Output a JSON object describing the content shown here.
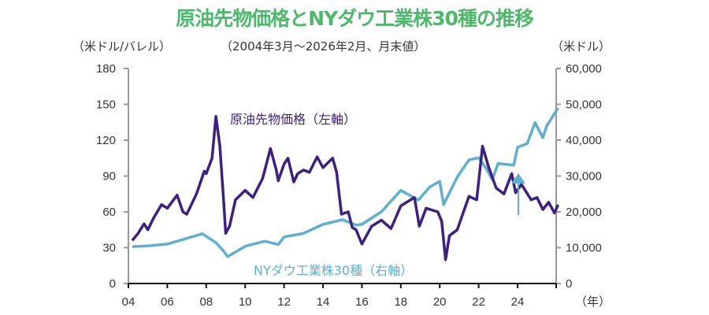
{
  "chart_data": {
    "type": "line",
    "title": "原油先物価格とNYダウ工業株30種の推移",
    "subtitle": "（2004年3月～2026年2月、月末値）",
    "ylabel_left": "（米ドル/バレル）",
    "ylabel_right": "（米ドル）",
    "xlabel": "（年）",
    "x_ticks": [
      "04",
      "06",
      "08",
      "10",
      "12",
      "14",
      "16",
      "18",
      "20",
      "22",
      "24"
    ],
    "xlim": [
      2004,
      2026.1
    ],
    "y_left_ticks": [
      "0",
      "30",
      "60",
      "90",
      "120",
      "150",
      "180"
    ],
    "ylim_left": [
      0,
      180
    ],
    "y_right_ticks": [
      "0",
      "10,000",
      "20,000",
      "30,000",
      "40,000",
      "50,000",
      "60,000"
    ],
    "ylim_right": [
      0,
      60000
    ],
    "grid": false,
    "series": [
      {
        "name": "原油先物価格（左軸）",
        "axis": "left",
        "color": "#3d2080",
        "x": [
          2004.2,
          2004.5,
          2004.8,
          2005.0,
          2005.3,
          2005.7,
          2006.0,
          2006.5,
          2006.8,
          2007.0,
          2007.5,
          2007.9,
          2008.0,
          2008.3,
          2008.5,
          2008.7,
          2008.9,
          2009.0,
          2009.2,
          2009.5,
          2010.0,
          2010.4,
          2010.9,
          2011.3,
          2011.6,
          2011.7,
          2012.0,
          2012.2,
          2012.5,
          2012.7,
          2013.0,
          2013.3,
          2013.7,
          2014.0,
          2014.5,
          2014.7,
          2014.95,
          2015.3,
          2015.5,
          2015.7,
          2016.0,
          2016.5,
          2017.0,
          2017.5,
          2018.0,
          2018.7,
          2018.95,
          2019.3,
          2019.9,
          2020.1,
          2020.3,
          2020.5,
          2020.9,
          2021.5,
          2021.9,
          2022.2,
          2022.5,
          2022.9,
          2023.3,
          2023.7,
          2023.9,
          2024.2,
          2024.7,
          2025.0,
          2025.3,
          2025.6,
          2025.9,
          2026.08
        ],
        "values": [
          36,
          42,
          50,
          45,
          55,
          66,
          63,
          74,
          60,
          58,
          75,
          94,
          92,
          105,
          140,
          115,
          68,
          42,
          48,
          70,
          78,
          72,
          88,
          113,
          95,
          86,
          100,
          105,
          85,
          92,
          95,
          93,
          106,
          97,
          105,
          93,
          58,
          60,
          47,
          45,
          33,
          48,
          53,
          46,
          65,
          72,
          48,
          63,
          60,
          52,
          20,
          40,
          45,
          73,
          70,
          115,
          98,
          80,
          75,
          92,
          76,
          83,
          70,
          72,
          62,
          68,
          59,
          66
        ]
      },
      {
        "name": "NYダウ工業株30種（右軸）",
        "axis": "right",
        "color": "#5fb0d0",
        "x": [
          2004.2,
          2005.0,
          2006.0,
          2007.0,
          2007.8,
          2008.5,
          2008.9,
          2009.1,
          2010.0,
          2011.0,
          2011.7,
          2012.0,
          2013.0,
          2014.0,
          2015.0,
          2015.7,
          2016.0,
          2017.0,
          2018.0,
          2018.9,
          2019.5,
          2020.0,
          2020.2,
          2020.9,
          2021.5,
          2022.0,
          2022.4,
          2022.7,
          2023.0,
          2023.8,
          2024.0,
          2024.5,
          2024.9,
          2025.3,
          2025.5,
          2026.08
        ],
        "values": [
          10300,
          10500,
          11000,
          12600,
          13900,
          11400,
          9000,
          7500,
          10400,
          11800,
          10900,
          13000,
          14000,
          16500,
          17800,
          16300,
          16500,
          20000,
          26000,
          23300,
          27000,
          28500,
          22000,
          29700,
          34500,
          35100,
          32000,
          29000,
          33500,
          33000,
          38000,
          39100,
          44900,
          40700,
          44000,
          49000
        ]
      }
    ]
  }
}
